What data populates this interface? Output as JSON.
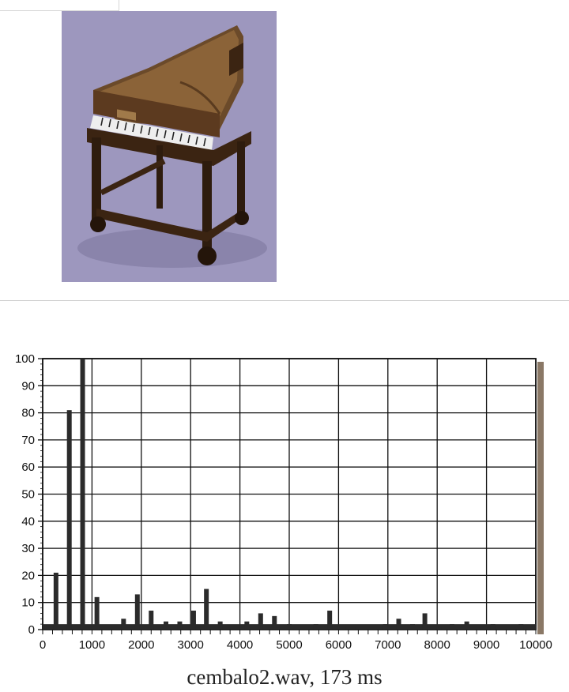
{
  "caption": "cembalo2.wav, 173 ms",
  "chart_data": {
    "type": "bar",
    "title": "",
    "xlabel": "",
    "ylabel": "",
    "xlim": [
      0,
      10000
    ],
    "ylim": [
      0,
      100
    ],
    "x_ticks": [
      "0",
      "1000",
      "2000",
      "3000",
      "4000",
      "5000",
      "6000",
      "7000",
      "8000",
      "9000",
      "10000"
    ],
    "y_ticks": [
      "0",
      "10",
      "20",
      "30",
      "40",
      "50",
      "60",
      "70",
      "80",
      "90",
      "100"
    ],
    "grid": true,
    "series": [
      {
        "x": [
          270,
          540,
          810,
          1100,
          1640,
          1920,
          2200,
          2500,
          2780,
          3060,
          3320,
          3600,
          4140,
          4420,
          4700,
          5000,
          5540,
          5820,
          6100,
          6380,
          6950,
          7220,
          7500,
          7750,
          8030,
          8300,
          8600,
          9130,
          9700
        ],
        "y": [
          21,
          81,
          100,
          12,
          4,
          13,
          7,
          3,
          3,
          7,
          15,
          3,
          3,
          6,
          5,
          2,
          2,
          7,
          1,
          1,
          2,
          4,
          2,
          6,
          1,
          2,
          3,
          2,
          2
        ]
      }
    ]
  },
  "colors": {
    "bars": "#2b2b2b",
    "grid": "#111111",
    "frame_shadow": "#8a7866",
    "photo_bg": "#9d97be"
  }
}
